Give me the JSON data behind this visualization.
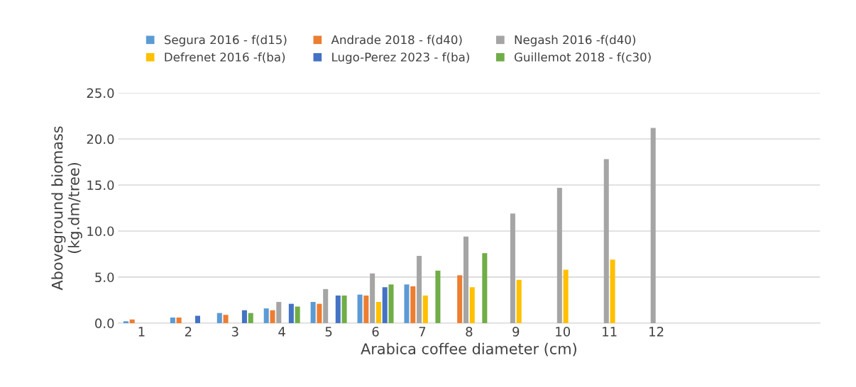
{
  "chart_data": {
    "type": "bar",
    "xlabel": "Arabica coffee diameter (cm)",
    "ylabel": "Aboveground biomass\n(kg.dm/tree)",
    "categories": [
      "1",
      "2",
      "3",
      "4",
      "5",
      "6",
      "7",
      "8",
      "9",
      "10",
      "11",
      "12",
      null,
      null,
      null
    ],
    "series": [
      {
        "name": "Segura 2016 - f(d15)",
        "color": "#5b9bd5",
        "values": [
          0.2,
          0.6,
          1.1,
          1.6,
          2.3,
          3.1,
          4.2,
          null,
          null,
          null,
          null,
          null,
          null,
          null,
          null
        ]
      },
      {
        "name": "Andrade 2018 - f(d40)",
        "color": "#ed7d31",
        "values": [
          0.4,
          0.6,
          0.9,
          1.4,
          2.1,
          3.0,
          4.0,
          5.2,
          null,
          null,
          null,
          null,
          null,
          null,
          null
        ]
      },
      {
        "name": "Negash 2016 -f(d40)",
        "color": "#a5a5a5",
        "values": [
          null,
          null,
          null,
          2.3,
          3.7,
          5.4,
          7.3,
          9.4,
          11.9,
          14.7,
          17.8,
          21.2,
          null,
          null,
          null
        ]
      },
      {
        "name": "Defrenet 2016 -f(ba)",
        "color": "#ffc000",
        "values": [
          null,
          null,
          null,
          null,
          null,
          2.3,
          3.0,
          3.9,
          4.7,
          5.8,
          6.9,
          null,
          null,
          null,
          null
        ]
      },
      {
        "name": "Lugo-Perez 2023 - f(ba)",
        "color": "#4472c4",
        "values": [
          null,
          0.8,
          1.4,
          2.1,
          3.0,
          3.9,
          null,
          null,
          null,
          null,
          null,
          null,
          null,
          null,
          null
        ]
      },
      {
        "name": "Guillemot 2018 - f(c30)",
        "color": "#70ad47",
        "values": [
          null,
          null,
          1.1,
          1.8,
          3.0,
          4.2,
          5.7,
          7.6,
          null,
          null,
          null,
          null,
          null,
          null,
          null
        ]
      }
    ],
    "ylim": [
      0,
      25
    ],
    "yticks": [
      {
        "value": 0,
        "label": "0.0"
      },
      {
        "value": 5,
        "label": "5.0"
      },
      {
        "value": 10,
        "label": "10.0"
      },
      {
        "value": 15,
        "label": "15.0"
      },
      {
        "value": 20,
        "label": "20.0"
      },
      {
        "value": 25,
        "label": "25.0"
      }
    ],
    "grid": "y",
    "legend": "top"
  }
}
